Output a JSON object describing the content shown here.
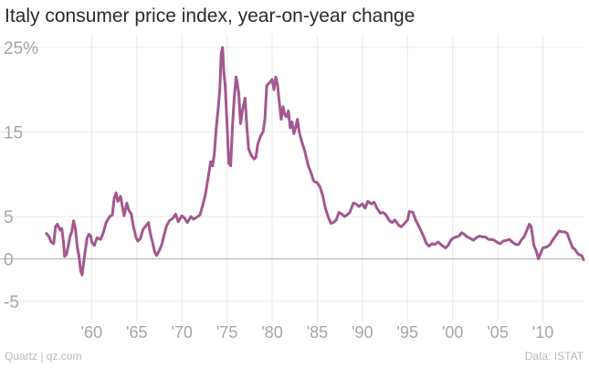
{
  "title": "Italy consumer price index, year-on-year change",
  "footer": {
    "credit": "Quartz | qz.com",
    "source": "Data: ISTAT"
  },
  "colors": {
    "line": "#a3588f",
    "grid": "#e9e9e9",
    "zero": "#b0b0b0",
    "tick_text": "#a6a6a6"
  },
  "chart_data": {
    "type": "line",
    "title": "Italy consumer price index, year-on-year change",
    "xlabel": "",
    "ylabel": "",
    "xlim": [
      1954.5,
      2014.6
    ],
    "ylim": [
      -7.5,
      26.5
    ],
    "grid": true,
    "y_ticks": [
      {
        "value": 25,
        "label": "25%"
      },
      {
        "value": 15,
        "label": "15"
      },
      {
        "value": 5,
        "label": "5"
      },
      {
        "value": 0,
        "label": "0"
      },
      {
        "value": -5,
        "label": "-5"
      }
    ],
    "x_ticks": [
      {
        "value": 1960,
        "label": "'60"
      },
      {
        "value": 1965,
        "label": "'65"
      },
      {
        "value": 1970,
        "label": "'70"
      },
      {
        "value": 1975,
        "label": "'75"
      },
      {
        "value": 1980,
        "label": "'80"
      },
      {
        "value": 1985,
        "label": "'85"
      },
      {
        "value": 1990,
        "label": "'90"
      },
      {
        "value": 1995,
        "label": "'95"
      },
      {
        "value": 2000,
        "label": "'00"
      },
      {
        "value": 2005,
        "label": "'05"
      },
      {
        "value": 2010,
        "label": "'10"
      }
    ],
    "series": [
      {
        "points": [
          [
            1955.0,
            3.0
          ],
          [
            1955.3,
            2.6
          ],
          [
            1955.5,
            2.0
          ],
          [
            1955.8,
            1.8
          ],
          [
            1956.0,
            3.8
          ],
          [
            1956.2,
            4.1
          ],
          [
            1956.5,
            3.4
          ],
          [
            1956.7,
            3.6
          ],
          [
            1956.9,
            1.8
          ],
          [
            1957.0,
            0.3
          ],
          [
            1957.2,
            0.5
          ],
          [
            1957.4,
            1.5
          ],
          [
            1957.6,
            2.6
          ],
          [
            1957.8,
            3.2
          ],
          [
            1958.0,
            4.5
          ],
          [
            1958.2,
            3.6
          ],
          [
            1958.4,
            1.5
          ],
          [
            1958.6,
            0.3
          ],
          [
            1958.8,
            -1.5
          ],
          [
            1958.95,
            -1.9
          ],
          [
            1959.1,
            -0.5
          ],
          [
            1959.3,
            1.0
          ],
          [
            1959.5,
            2.5
          ],
          [
            1959.7,
            2.9
          ],
          [
            1959.9,
            2.7
          ],
          [
            1960.0,
            2.0
          ],
          [
            1960.3,
            1.6
          ],
          [
            1960.6,
            2.5
          ],
          [
            1961.0,
            2.3
          ],
          [
            1961.3,
            3.1
          ],
          [
            1961.6,
            4.3
          ],
          [
            1962.0,
            5.0
          ],
          [
            1962.3,
            5.2
          ],
          [
            1962.5,
            7.2
          ],
          [
            1962.7,
            7.8
          ],
          [
            1962.9,
            6.8
          ],
          [
            1963.2,
            7.4
          ],
          [
            1963.4,
            6.2
          ],
          [
            1963.6,
            5.1
          ],
          [
            1963.9,
            6.6
          ],
          [
            1964.1,
            5.8
          ],
          [
            1964.4,
            5.3
          ],
          [
            1964.6,
            4.0
          ],
          [
            1964.9,
            2.6
          ],
          [
            1965.1,
            2.1
          ],
          [
            1965.4,
            2.4
          ],
          [
            1965.7,
            3.5
          ],
          [
            1966.0,
            3.9
          ],
          [
            1966.3,
            4.3
          ],
          [
            1966.5,
            3.0
          ],
          [
            1966.8,
            1.7
          ],
          [
            1967.0,
            0.8
          ],
          [
            1967.2,
            0.4
          ],
          [
            1967.5,
            1.0
          ],
          [
            1967.8,
            1.8
          ],
          [
            1968.0,
            2.7
          ],
          [
            1968.3,
            3.9
          ],
          [
            1968.6,
            4.5
          ],
          [
            1969.0,
            4.8
          ],
          [
            1969.3,
            5.3
          ],
          [
            1969.6,
            4.4
          ],
          [
            1970.0,
            5.1
          ],
          [
            1970.3,
            4.8
          ],
          [
            1970.6,
            4.3
          ],
          [
            1971.0,
            5.0
          ],
          [
            1971.3,
            4.7
          ],
          [
            1971.6,
            4.9
          ],
          [
            1972.0,
            5.2
          ],
          [
            1972.3,
            6.3
          ],
          [
            1972.6,
            7.6
          ],
          [
            1973.0,
            10.2
          ],
          [
            1973.2,
            11.5
          ],
          [
            1973.4,
            11.0
          ],
          [
            1973.6,
            12.5
          ],
          [
            1973.8,
            15.5
          ],
          [
            1974.0,
            17.5
          ],
          [
            1974.2,
            20.0
          ],
          [
            1974.35,
            24.2
          ],
          [
            1974.5,
            25.0
          ],
          [
            1974.65,
            22.0
          ],
          [
            1974.8,
            20.5
          ],
          [
            1975.0,
            16.0
          ],
          [
            1975.2,
            11.3
          ],
          [
            1975.4,
            11.0
          ],
          [
            1975.6,
            15.5
          ],
          [
            1975.8,
            19.0
          ],
          [
            1976.0,
            21.5
          ],
          [
            1976.1,
            21.0
          ],
          [
            1976.3,
            19.5
          ],
          [
            1976.5,
            16.0
          ],
          [
            1976.7,
            17.5
          ],
          [
            1977.0,
            19.0
          ],
          [
            1977.2,
            15.5
          ],
          [
            1977.4,
            13.0
          ],
          [
            1977.7,
            12.2
          ],
          [
            1978.0,
            11.8
          ],
          [
            1978.2,
            12.0
          ],
          [
            1978.4,
            13.5
          ],
          [
            1978.7,
            14.5
          ],
          [
            1979.0,
            15.0
          ],
          [
            1979.2,
            16.5
          ],
          [
            1979.4,
            20.5
          ],
          [
            1979.7,
            20.8
          ],
          [
            1980.0,
            21.2
          ],
          [
            1980.2,
            20.0
          ],
          [
            1980.4,
            21.5
          ],
          [
            1980.6,
            20.5
          ],
          [
            1980.8,
            18.5
          ],
          [
            1981.0,
            16.5
          ],
          [
            1981.2,
            18.0
          ],
          [
            1981.4,
            17.0
          ],
          [
            1981.6,
            16.8
          ],
          [
            1981.8,
            17.5
          ],
          [
            1982.0,
            15.5
          ],
          [
            1982.2,
            16.2
          ],
          [
            1982.4,
            14.8
          ],
          [
            1982.6,
            15.5
          ],
          [
            1982.8,
            16.5
          ],
          [
            1983.0,
            15.0
          ],
          [
            1983.3,
            13.8
          ],
          [
            1983.6,
            12.8
          ],
          [
            1984.0,
            11.0
          ],
          [
            1984.3,
            10.2
          ],
          [
            1984.6,
            9.2
          ],
          [
            1985.0,
            9.0
          ],
          [
            1985.3,
            8.5
          ],
          [
            1985.6,
            7.5
          ],
          [
            1985.9,
            6.0
          ],
          [
            1986.2,
            5.0
          ],
          [
            1986.5,
            4.2
          ],
          [
            1986.8,
            4.3
          ],
          [
            1987.1,
            4.6
          ],
          [
            1987.4,
            5.5
          ],
          [
            1987.7,
            5.3
          ],
          [
            1988.0,
            5.0
          ],
          [
            1988.3,
            5.2
          ],
          [
            1988.6,
            5.5
          ],
          [
            1989.0,
            6.6
          ],
          [
            1989.3,
            6.5
          ],
          [
            1989.6,
            6.2
          ],
          [
            1990.0,
            6.5
          ],
          [
            1990.3,
            6.0
          ],
          [
            1990.6,
            6.8
          ],
          [
            1991.0,
            6.5
          ],
          [
            1991.3,
            6.7
          ],
          [
            1991.6,
            6.0
          ],
          [
            1992.0,
            5.4
          ],
          [
            1992.3,
            5.5
          ],
          [
            1992.6,
            5.2
          ],
          [
            1993.0,
            4.5
          ],
          [
            1993.3,
            4.3
          ],
          [
            1993.6,
            4.6
          ],
          [
            1994.0,
            4.0
          ],
          [
            1994.3,
            3.8
          ],
          [
            1994.6,
            4.1
          ],
          [
            1995.0,
            4.6
          ],
          [
            1995.2,
            5.6
          ],
          [
            1995.6,
            5.5
          ],
          [
            1995.9,
            4.6
          ],
          [
            1996.2,
            4.0
          ],
          [
            1996.5,
            3.3
          ],
          [
            1996.8,
            2.6
          ],
          [
            1997.1,
            1.8
          ],
          [
            1997.4,
            1.5
          ],
          [
            1997.7,
            1.8
          ],
          [
            1998.0,
            1.7
          ],
          [
            1998.4,
            2.0
          ],
          [
            1998.8,
            1.6
          ],
          [
            1999.2,
            1.3
          ],
          [
            1999.5,
            1.6
          ],
          [
            1999.8,
            2.2
          ],
          [
            2000.1,
            2.5
          ],
          [
            2000.4,
            2.6
          ],
          [
            2000.7,
            2.7
          ],
          [
            2001.0,
            3.1
          ],
          [
            2001.3,
            2.9
          ],
          [
            2001.6,
            2.6
          ],
          [
            2002.0,
            2.4
          ],
          [
            2002.3,
            2.2
          ],
          [
            2002.6,
            2.5
          ],
          [
            2003.0,
            2.7
          ],
          [
            2003.3,
            2.6
          ],
          [
            2003.6,
            2.6
          ],
          [
            2004.0,
            2.3
          ],
          [
            2004.3,
            2.3
          ],
          [
            2004.6,
            2.2
          ],
          [
            2005.0,
            1.9
          ],
          [
            2005.3,
            1.8
          ],
          [
            2005.6,
            2.1
          ],
          [
            2006.0,
            2.2
          ],
          [
            2006.3,
            2.3
          ],
          [
            2006.6,
            2.0
          ],
          [
            2007.0,
            1.7
          ],
          [
            2007.3,
            1.7
          ],
          [
            2007.6,
            2.2
          ],
          [
            2007.9,
            2.6
          ],
          [
            2008.2,
            3.3
          ],
          [
            2008.5,
            4.1
          ],
          [
            2008.7,
            3.8
          ],
          [
            2009.0,
            1.6
          ],
          [
            2009.3,
            0.8
          ],
          [
            2009.5,
            0.0
          ],
          [
            2009.8,
            0.8
          ],
          [
            2010.0,
            1.3
          ],
          [
            2010.4,
            1.4
          ],
          [
            2010.8,
            1.7
          ],
          [
            2011.0,
            2.1
          ],
          [
            2011.4,
            2.7
          ],
          [
            2011.8,
            3.3
          ],
          [
            2012.1,
            3.2
          ],
          [
            2012.4,
            3.2
          ],
          [
            2012.7,
            3.0
          ],
          [
            2013.0,
            2.1
          ],
          [
            2013.3,
            1.3
          ],
          [
            2013.5,
            1.2
          ],
          [
            2013.8,
            0.7
          ],
          [
            2014.0,
            0.5
          ],
          [
            2014.3,
            0.4
          ],
          [
            2014.5,
            -0.1
          ]
        ]
      }
    ]
  }
}
